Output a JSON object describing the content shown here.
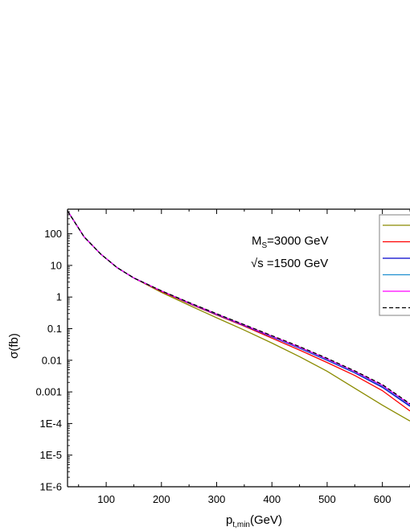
{
  "chart_data": {
    "type": "line",
    "xlabel_main": "p",
    "xlabel_sub": "t,min",
    "xlabel_unit": "(GeV)",
    "ylabel": "σ(fb)",
    "xlim": [
      30,
      650
    ],
    "ylim": [
      1e-06,
      600
    ],
    "yscale": "log",
    "x_ticks": [
      100,
      200,
      300,
      400,
      500,
      600
    ],
    "y_ticks": [
      {
        "value": 100,
        "label": "100"
      },
      {
        "value": 10,
        "label": "10"
      },
      {
        "value": 1,
        "label": "1"
      },
      {
        "value": 0.1,
        "label": "0.1"
      },
      {
        "value": 0.01,
        "label": "0.01"
      },
      {
        "value": 0.001,
        "label": "0.001"
      },
      {
        "value": 0.0001,
        "label": "1E-4"
      },
      {
        "value": 1e-05,
        "label": "1E-5"
      },
      {
        "value": 1e-06,
        "label": "1E-6"
      }
    ],
    "annotations": [
      {
        "main": "M",
        "sub": "S",
        "rest": "=3000 GeV"
      },
      {
        "main": "√s =1500 GeV"
      }
    ],
    "legend_location": "top-right (clipped)",
    "series": [
      {
        "color": "#8b8b00",
        "dash": "solid",
        "x": [
          30,
          60,
          90,
          120,
          150,
          200,
          250,
          300,
          350,
          400,
          450,
          500,
          550,
          600,
          650
        ],
        "y": [
          530,
          80,
          23,
          8.5,
          4.0,
          1.4,
          0.55,
          0.22,
          0.09,
          0.035,
          0.013,
          0.0045,
          0.0013,
          0.00038,
          0.00012
        ]
      },
      {
        "color": "#ff0000",
        "dash": "solid",
        "x": [
          30,
          60,
          90,
          120,
          150,
          200,
          250,
          300,
          350,
          400,
          450,
          500,
          550,
          600,
          650
        ],
        "y": [
          530,
          80,
          23,
          8.5,
          4.0,
          1.5,
          0.62,
          0.27,
          0.12,
          0.05,
          0.021,
          0.0085,
          0.0033,
          0.0011,
          0.00025
        ]
      },
      {
        "color": "#0000cc",
        "dash": "solid",
        "x": [
          30,
          60,
          90,
          120,
          150,
          200,
          250,
          300,
          350,
          400,
          450,
          500,
          550,
          600,
          650
        ],
        "y": [
          530,
          80,
          23,
          8.5,
          4.0,
          1.55,
          0.64,
          0.28,
          0.125,
          0.055,
          0.024,
          0.01,
          0.004,
          0.0014,
          0.00035
        ]
      },
      {
        "color": "#1f8fd0",
        "dash": "solid",
        "x": [
          30,
          60,
          90,
          120,
          150,
          200,
          250,
          300,
          350,
          400,
          450,
          500,
          550,
          600,
          650
        ],
        "y": [
          530,
          80,
          23,
          8.5,
          4.0,
          1.55,
          0.65,
          0.285,
          0.128,
          0.057,
          0.025,
          0.0105,
          0.0042,
          0.0015,
          0.00038
        ]
      },
      {
        "color": "#ff00ff",
        "dash": "solid",
        "x": [
          30,
          60,
          90,
          120,
          150,
          200,
          250,
          300,
          350,
          400,
          450,
          500,
          550,
          600,
          650
        ],
        "y": [
          530,
          80,
          23,
          8.5,
          4.0,
          1.56,
          0.66,
          0.29,
          0.13,
          0.058,
          0.026,
          0.011,
          0.0044,
          0.0016,
          0.0004
        ]
      },
      {
        "color": "#000000",
        "dash": "dashed",
        "x": [
          30,
          60,
          90,
          120,
          150,
          200,
          250,
          300,
          350,
          400,
          450,
          500,
          550,
          600,
          650
        ],
        "y": [
          530,
          80,
          23,
          8.5,
          4.0,
          1.57,
          0.67,
          0.295,
          0.133,
          0.06,
          0.027,
          0.0115,
          0.0046,
          0.0017,
          0.00042
        ]
      }
    ]
  }
}
